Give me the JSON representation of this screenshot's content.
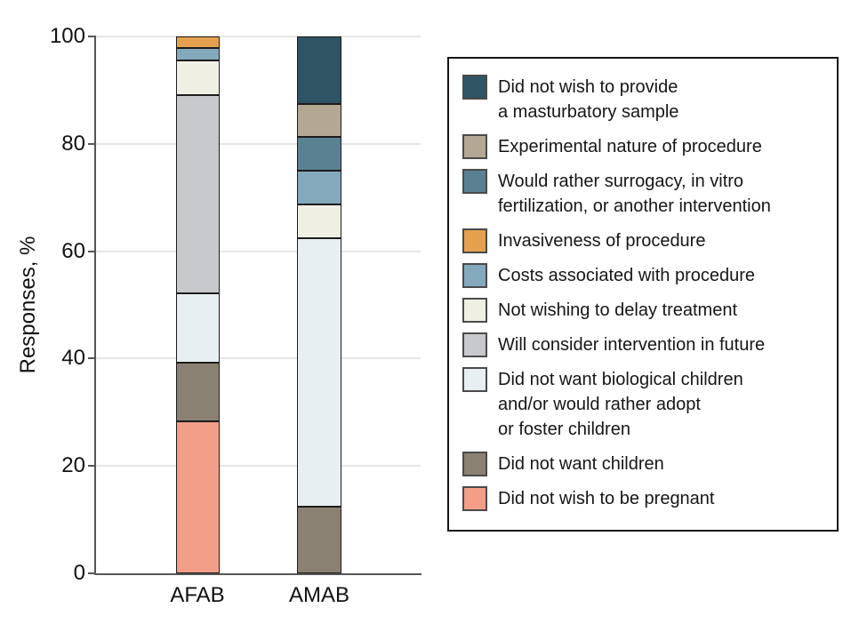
{
  "figure": {
    "y_axis": {
      "label": "Responses, %",
      "ticks": [
        0,
        20,
        40,
        60,
        80,
        100
      ]
    },
    "x_axis": {
      "categories": [
        "AFAB",
        "AMAB"
      ]
    }
  },
  "chart_data": {
    "type": "bar",
    "stacked": true,
    "title": "",
    "xlabel": "",
    "ylabel": "Responses, %",
    "ylim": [
      0,
      100
    ],
    "yticks": [
      0,
      20,
      40,
      60,
      80,
      100
    ],
    "grid": true,
    "legend_position": "right",
    "categories": [
      "AFAB",
      "AMAB"
    ],
    "series": [
      {
        "name": "Did not wish to be pregnant",
        "color": "#F29E89",
        "values": [
          28.3,
          0
        ]
      },
      {
        "name": "Did not want children",
        "color": "#8A8172",
        "values": [
          10.9,
          12.5
        ]
      },
      {
        "name": "Did not want biological children and/or would rather adopt or foster children",
        "color": "#E8EFF3",
        "values": [
          13.0,
          50.0
        ]
      },
      {
        "name": "Will consider intervention in future",
        "color": "#C8C9CC",
        "values": [
          36.9,
          0
        ]
      },
      {
        "name": "Not wishing to delay treatment",
        "color": "#F0EFE4",
        "values": [
          6.5,
          6.25
        ]
      },
      {
        "name": "Costs associated with procedure",
        "color": "#85A9BC",
        "values": [
          2.2,
          6.25
        ]
      },
      {
        "name": "Invasiveness of procedure",
        "color": "#E5A04F",
        "values": [
          2.2,
          0
        ]
      },
      {
        "name": "Would rather surrogacy, in vitro fertilization, or another intervention",
        "color": "#5A8191",
        "values": [
          0,
          6.25
        ]
      },
      {
        "name": "Experimental nature of procedure",
        "color": "#B3A893",
        "values": [
          0,
          6.25
        ]
      },
      {
        "name": "Did not wish to provide a masturbatory sample",
        "color": "#2F5463",
        "values": [
          0,
          12.5
        ]
      }
    ]
  },
  "legend": {
    "items": [
      {
        "color": "#2F5463",
        "lines": [
          "Did not wish to provide",
          "a masturbatory sample"
        ]
      },
      {
        "color": "#B3A893",
        "lines": [
          "Experimental nature of procedure"
        ]
      },
      {
        "color": "#5A8191",
        "lines": [
          "Would rather surrogacy, in vitro",
          "fertilization, or another intervention"
        ]
      },
      {
        "color": "#E5A04F",
        "lines": [
          "Invasiveness of procedure"
        ]
      },
      {
        "color": "#85A9BC",
        "lines": [
          "Costs associated with procedure"
        ]
      },
      {
        "color": "#F0EFE4",
        "lines": [
          "Not wishing to delay treatment"
        ]
      },
      {
        "color": "#C8C9CC",
        "lines": [
          "Will consider intervention in future"
        ]
      },
      {
        "color": "#E8EFF3",
        "lines": [
          "Did not want biological children",
          "and/or would rather adopt",
          "or foster children"
        ]
      },
      {
        "color": "#8A8172",
        "lines": [
          "Did not want children"
        ]
      },
      {
        "color": "#F29E89",
        "lines": [
          "Did not wish to be pregnant"
        ]
      }
    ]
  }
}
